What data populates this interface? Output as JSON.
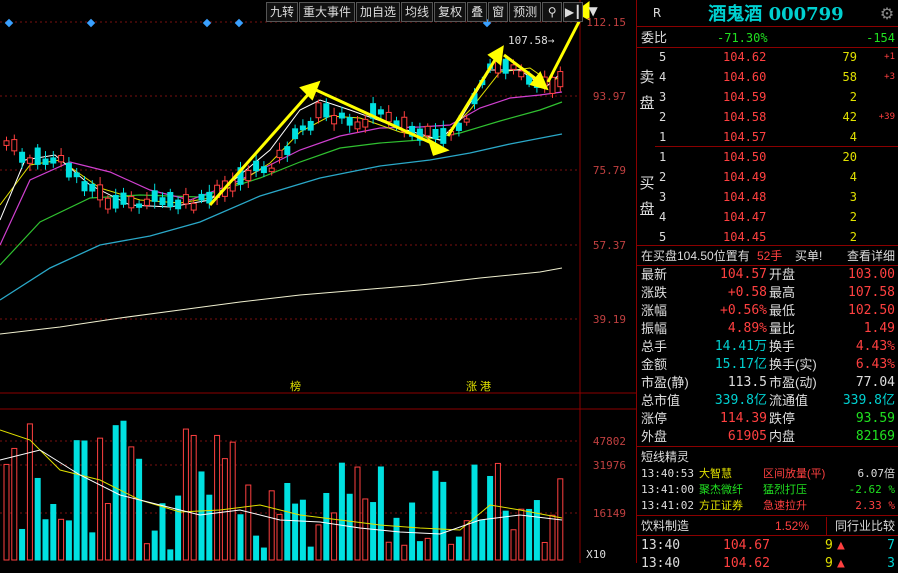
{
  "toolbar": {
    "buttons": [
      "九转",
      "重大事件",
      "加自选",
      "均线",
      "复权",
      "叠",
      "窗",
      "预测"
    ],
    "icons": [
      "lock-icon",
      "skip-end-icon",
      "dropdown-icon"
    ]
  },
  "chart": {
    "price_labels": [
      "112.15",
      "93.97",
      "75.79",
      "57.37",
      "39.19"
    ],
    "last_price_tag": "107.58",
    "tags": [
      "榜",
      "涨",
      "港"
    ],
    "volume_labels": [
      "47802",
      "31976",
      "16149"
    ],
    "volume_unit": "X10",
    "colors": {
      "up": "#ff4040",
      "down": "#00e0e0",
      "arrow": "#ffff00"
    }
  },
  "stock": {
    "r_label": "R",
    "name": "酒鬼酒",
    "code": "000799"
  },
  "commission": {
    "label": "委比",
    "ratio": "-71.30%",
    "diff": "-154"
  },
  "sell_label": [
    "卖",
    "盘"
  ],
  "buy_label": [
    "买",
    "盘"
  ],
  "asks": [
    {
      "level": "5",
      "price": "104.62",
      "vol": "79",
      "chg": "+1"
    },
    {
      "level": "4",
      "price": "104.60",
      "vol": "58",
      "chg": "+3"
    },
    {
      "level": "3",
      "price": "104.59",
      "vol": "2",
      "chg": ""
    },
    {
      "level": "2",
      "price": "104.58",
      "vol": "42",
      "chg": "+39"
    },
    {
      "level": "1",
      "price": "104.57",
      "vol": "4",
      "chg": ""
    }
  ],
  "bids": [
    {
      "level": "1",
      "price": "104.50",
      "vol": "20"
    },
    {
      "level": "2",
      "price": "104.49",
      "vol": "4"
    },
    {
      "level": "3",
      "price": "104.48",
      "vol": "3"
    },
    {
      "level": "4",
      "price": "104.47",
      "vol": "2"
    },
    {
      "level": "5",
      "price": "104.45",
      "vol": "2"
    }
  ],
  "notice": {
    "text1": "在买盘104.50位置有",
    "text2": "52手",
    "text3": "买单!",
    "link": "查看详细"
  },
  "quote": [
    {
      "k1": "最新",
      "v1": "104.57",
      "k2": "开盘",
      "v2": "103.00"
    },
    {
      "k1": "涨跌",
      "v1": "+0.58",
      "k2": "最高",
      "v2": "107.58"
    },
    {
      "k1": "涨幅",
      "v1": "+0.56%",
      "k2": "最低",
      "v2": "102.50"
    },
    {
      "k1": "振幅",
      "v1": "4.89%",
      "k2": "量比",
      "v2": "1.49"
    },
    {
      "k1": "总手",
      "v1": "14.41万",
      "k2": "换手",
      "v2": "4.43%"
    },
    {
      "k1": "金额",
      "v1": "15.17亿",
      "k2": "换手(实)",
      "v2": "6.43%"
    },
    {
      "k1": "市盈(静)",
      "v1": "113.5",
      "k2": "市盈(动)",
      "v2": "77.04"
    },
    {
      "k1": "总市值",
      "v1": "339.8亿",
      "k2": "流通值",
      "v2": "339.8亿"
    },
    {
      "k1": "涨停",
      "v1": "114.39",
      "k2": "跌停",
      "v2": "93.59"
    },
    {
      "k1": "外盘",
      "v1": "61905",
      "k2": "内盘",
      "v2": "82169"
    }
  ],
  "elf": {
    "title": "短线精灵",
    "items": [
      {
        "time": "13:40:53",
        "name": "大智慧",
        "event": "区间放量(平)",
        "value": "6.07倍"
      },
      {
        "time": "13:41:00",
        "name": "聚杰微纤",
        "event": "猛烈打压",
        "value": "-2.62 %"
      },
      {
        "time": "13:41:02",
        "name": "方正证券",
        "event": "急速拉升",
        "value": "2.33 %"
      }
    ]
  },
  "industry": {
    "name": "饮料制造",
    "pct": "1.52%",
    "compare": "同行业比较"
  },
  "ticks": [
    {
      "time": "13:40",
      "price": "104.67",
      "vol": "9",
      "n": "7"
    },
    {
      "time": "13:40",
      "price": "104.62",
      "vol": "9",
      "n": "3"
    }
  ]
}
